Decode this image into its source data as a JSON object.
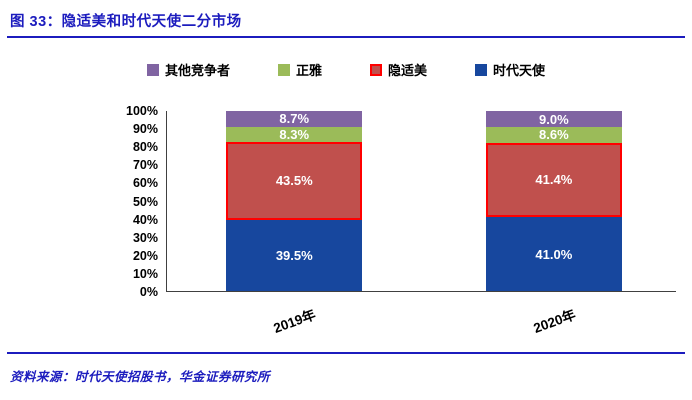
{
  "title": "图 33：隐适美和时代天使二分市场",
  "source": "资料来源：时代天使招股书，华金证券研究所",
  "colors": {
    "title_blue": "#1c1cbe",
    "rule_blue": "#1c1cbe",
    "source_blue": "#1c1cbe",
    "axis_gray": "#404040",
    "label_white": "#ffffff",
    "angel_blue": "#17479e",
    "invisalign_red_fill": "#c0504d",
    "invisalign_red_border": "#ff0000",
    "zhengya_green": "#9bbb59",
    "others_purple": "#8064a2"
  },
  "chart_data": {
    "type": "bar",
    "stacked": true,
    "title": "图 33：隐适美和时代天使二分市场",
    "categories": [
      "2019年",
      "2020年"
    ],
    "series": [
      {
        "name": "时代天使",
        "color": "#17479e",
        "values": [
          39.5,
          41.0
        ],
        "labels": [
          "39.5%",
          "41.0%"
        ]
      },
      {
        "name": "隐适美",
        "color": "#c0504d",
        "border_color": "#ff0000",
        "values": [
          43.5,
          41.4
        ],
        "labels": [
          "43.5%",
          "41.4%"
        ]
      },
      {
        "name": "正雅",
        "color": "#9bbb59",
        "values": [
          8.3,
          8.6
        ],
        "labels": [
          "8.3%",
          "8.6%"
        ]
      },
      {
        "name": "其他竞争者",
        "color": "#8064a2",
        "values": [
          8.7,
          9.0
        ],
        "labels": [
          "8.7%",
          "9.0%"
        ]
      }
    ],
    "legend_order": [
      "其他竞争者",
      "正雅",
      "隐适美",
      "时代天使"
    ],
    "legend_position": "top",
    "xlabel": "",
    "ylabel": "",
    "ylim": [
      0,
      100
    ],
    "ytick_labels_top_down": [
      "100%",
      "90%",
      "80%",
      "70%",
      "60%",
      "50%",
      "40%",
      "30%",
      "20%",
      "10%",
      "0%"
    ],
    "grid": false,
    "bar_centers_pct": [
      25,
      76
    ]
  }
}
